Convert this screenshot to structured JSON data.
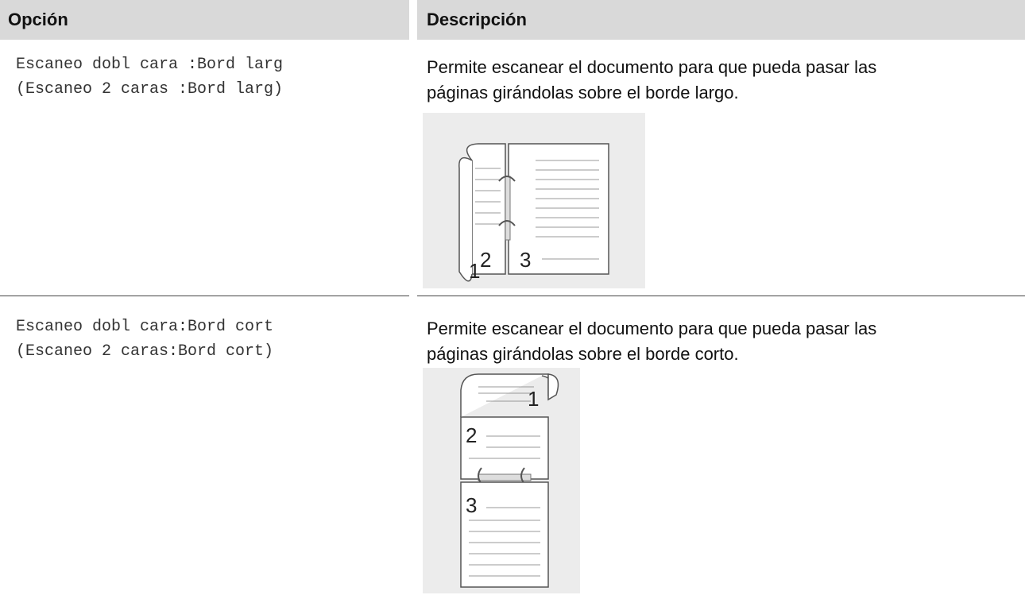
{
  "table": {
    "header": [
      "Opción",
      "Descripción"
    ],
    "rows": [
      {
        "option": [
          "Escaneo dobl cara :Bord larg",
          "(Escaneo 2 caras :Bord larg)"
        ],
        "description": [
          "Permite escanear el documento para que pueda pasar las",
          "páginas girándolas sobre el borde largo."
        ],
        "illustration_labels": [
          "1",
          "2",
          "3"
        ]
      },
      {
        "option": [
          "Escaneo dobl cara:Bord cort",
          "(Escaneo 2 caras:Bord cort)"
        ],
        "description": [
          "Permite escanear el documento para que pueda pasar las",
          "páginas girándolas sobre el borde corto."
        ],
        "illustration_labels": [
          "1",
          "2",
          "3"
        ]
      }
    ]
  }
}
